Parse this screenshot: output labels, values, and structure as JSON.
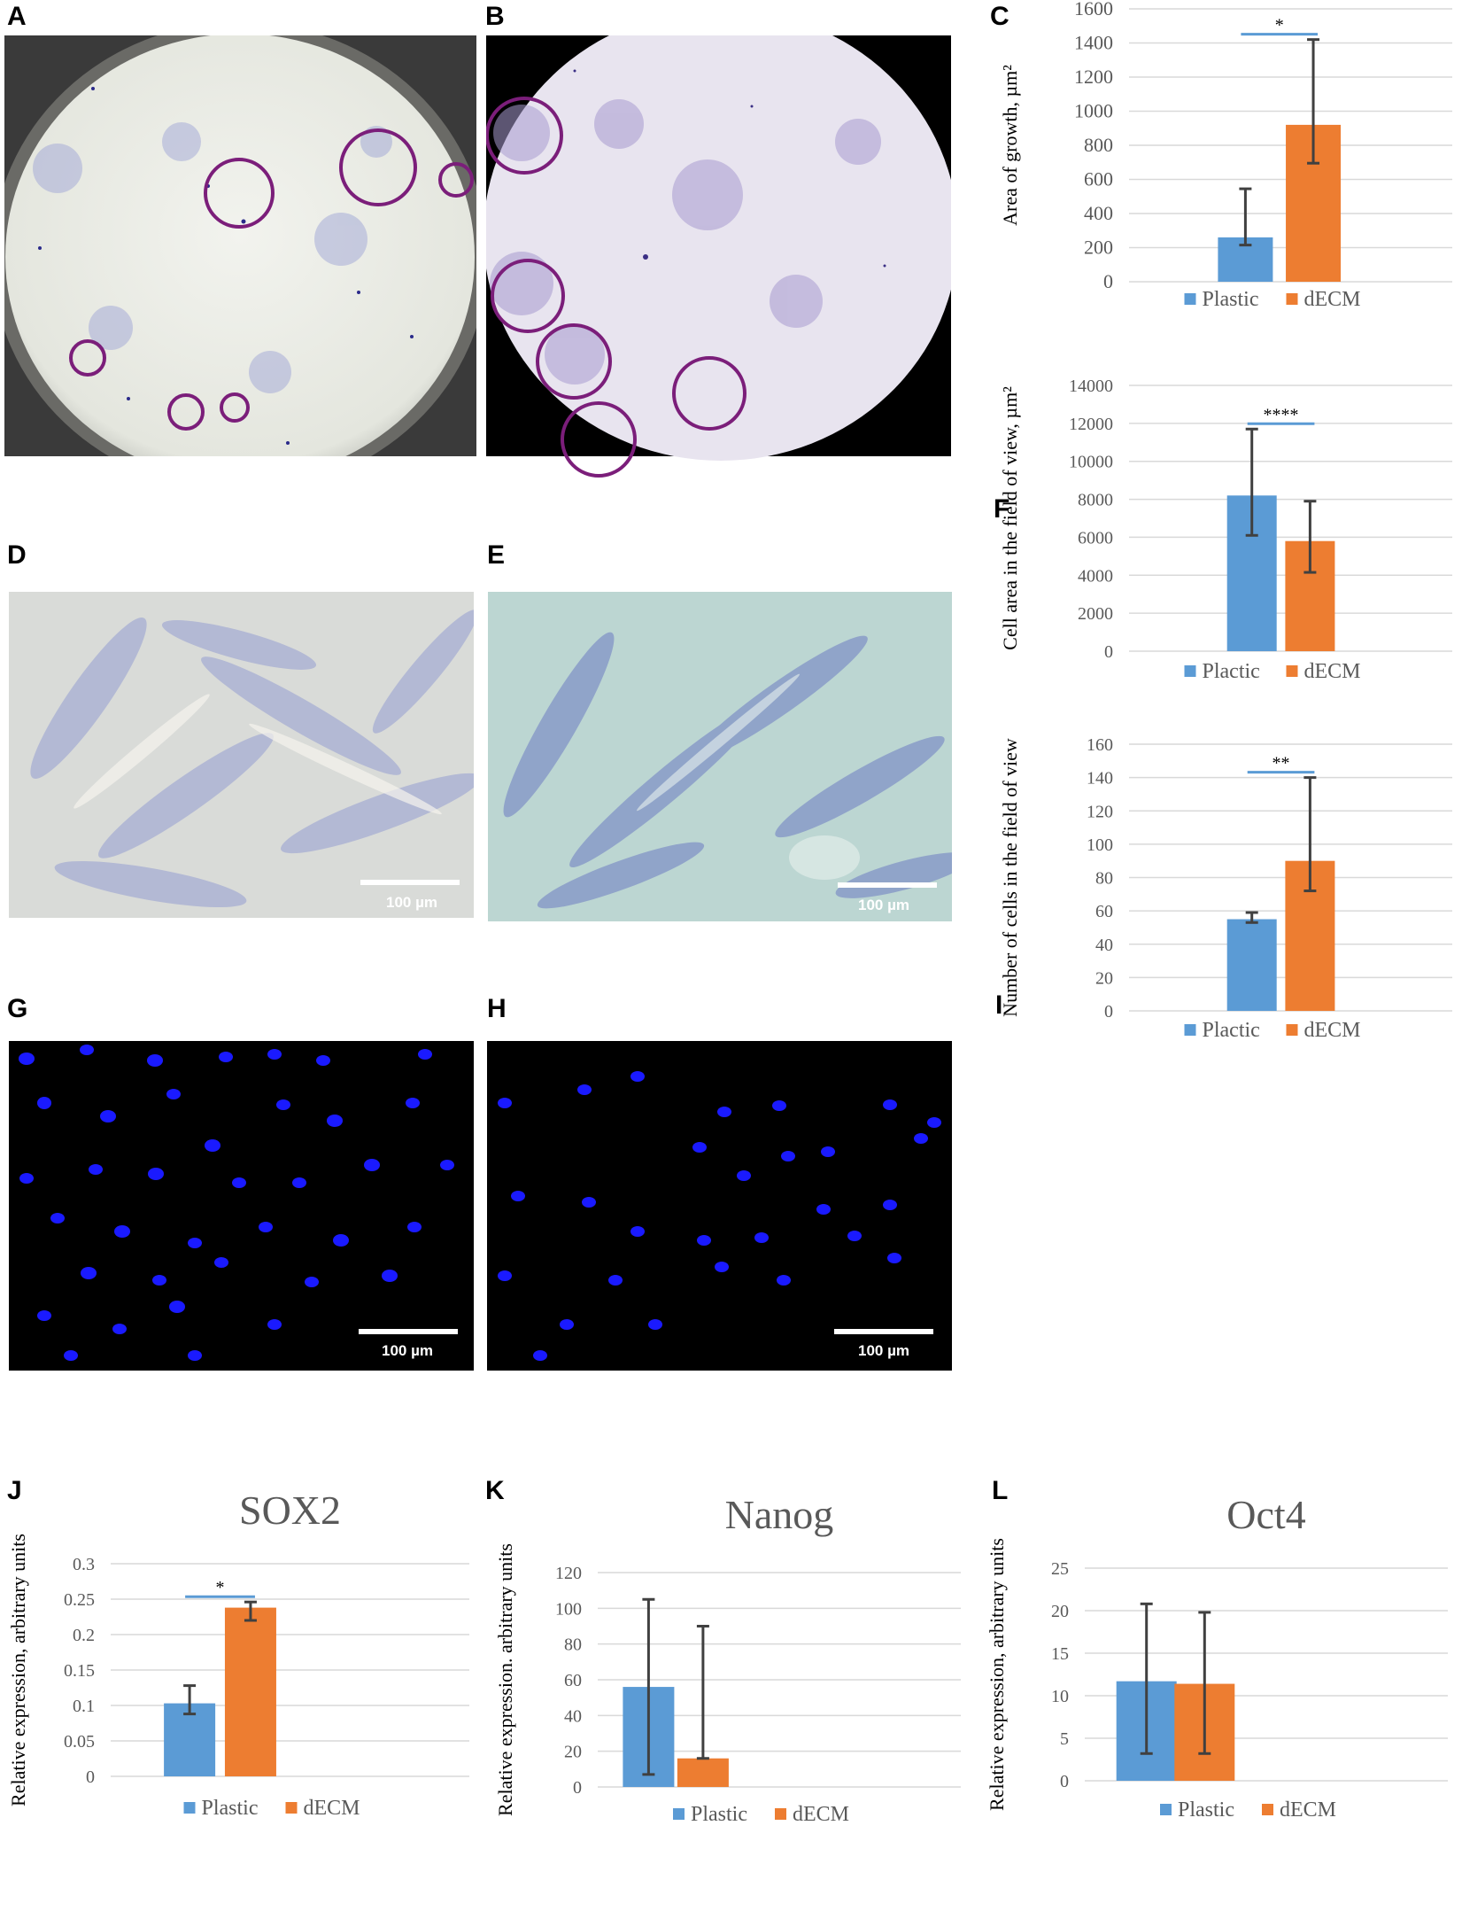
{
  "panels": {
    "A": "A",
    "B": "B",
    "C": "C",
    "D": "D",
    "E": "E",
    "F": "F",
    "G": "G",
    "H": "H",
    "I": "I",
    "J": "J",
    "K": "K",
    "L": "L"
  },
  "scale_bars": {
    "D": "100 µm",
    "E": "100 µm",
    "G": "100 µm",
    "H": "100 µm"
  },
  "colors": {
    "plastic": "#5B9BD5",
    "decm": "#ED7D31",
    "sig_line": "#5B9BD5",
    "circle": "#7B1E7A",
    "nuclei": "#1a1aff"
  },
  "chart_data": [
    {
      "id": "C",
      "type": "bar",
      "title": "",
      "categories": [
        "Plastic",
        "dECM"
      ],
      "values": [
        260,
        920
      ],
      "err_low": [
        215,
        695
      ],
      "err_high": [
        545,
        1420
      ],
      "ylabel": "Area of growth, µm²",
      "ylim": [
        0,
        1600
      ],
      "step": 200,
      "significance": "*",
      "legend": [
        "Plastic",
        "dECM"
      ],
      "grid": true
    },
    {
      "id": "F",
      "type": "bar",
      "title": "",
      "categories": [
        "Plactic",
        "dECM"
      ],
      "values": [
        8200,
        5800
      ],
      "err_low": [
        6100,
        4150
      ],
      "err_high": [
        11700,
        7900
      ],
      "ylabel": "Cell area in the field of view, µm²",
      "ylim": [
        0,
        14000
      ],
      "step": 2000,
      "significance": "****",
      "legend": [
        "Plactic",
        "dECM"
      ],
      "grid": true
    },
    {
      "id": "I",
      "type": "bar",
      "title": "",
      "categories": [
        "Plactic",
        "dECM"
      ],
      "values": [
        55,
        90
      ],
      "err_low": [
        53,
        72
      ],
      "err_high": [
        59,
        140
      ],
      "ylabel": "Number of cells in the field of view",
      "ylim": [
        0,
        160
      ],
      "step": 20,
      "significance": "**",
      "legend": [
        "Plactic",
        "dECM"
      ],
      "grid": true
    },
    {
      "id": "J",
      "type": "bar",
      "title": "SOX2",
      "categories": [
        "Plastic",
        "dECM"
      ],
      "values": [
        0.103,
        0.238
      ],
      "err_low": [
        0.088,
        0.22
      ],
      "err_high": [
        0.128,
        0.246
      ],
      "ylabel": "Relative expression, arbitrary units",
      "ylim": [
        0,
        0.3
      ],
      "step": 0.05,
      "tick_labels": [
        "0",
        "0.05",
        "0.1",
        "0.15",
        "0.2",
        "0.25",
        "0.3"
      ],
      "significance": "*",
      "legend": [
        "Plastic",
        "dECM"
      ],
      "grid": true
    },
    {
      "id": "K",
      "type": "bar",
      "title": "Nanog",
      "categories": [
        "Plastic",
        "dECM"
      ],
      "values": [
        56,
        16
      ],
      "err_low": [
        7,
        16
      ],
      "err_high": [
        105,
        90
      ],
      "ylabel": "Relative expression. arbitrary units",
      "ylim": [
        0,
        120
      ],
      "step": 20,
      "significance": "",
      "legend": [
        "Plastic",
        "dECM"
      ],
      "grid": true
    },
    {
      "id": "L",
      "type": "bar",
      "title": "Oct4",
      "categories": [
        "Plastic",
        "dECM"
      ],
      "values": [
        11.7,
        11.4
      ],
      "err_low": [
        3.2,
        3.2
      ],
      "err_high": [
        20.8,
        19.8
      ],
      "ylabel": "Relative expression, arbitrary units",
      "ylim": [
        0,
        25
      ],
      "step": 5,
      "significance": "",
      "legend": [
        "Plastic",
        "dECM"
      ],
      "grid": true
    }
  ]
}
